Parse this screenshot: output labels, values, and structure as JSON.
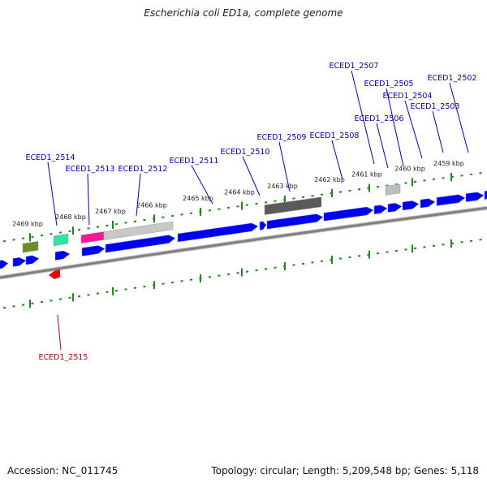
{
  "title": "Escherichia coli ED1a, complete genome",
  "footer": {
    "accession": "Accession: NC_011745",
    "topology": "Topology: circular; Length: 5,209,548 bp; Genes: 5,118"
  },
  "colors": {
    "gene_forward": "#0000ee",
    "gene_reverse": "#ee0000",
    "label_forward": "#0000bb",
    "label_reverse": "#bb0000",
    "ticks": "#1a8a1a",
    "backbone": "#808080"
  },
  "scale_ticks": [
    "2469 kbp",
    "2468 kbp",
    "2467 kbp",
    "2466 kbp",
    "2465 kbp",
    "2464 kbp",
    "2463 kbp",
    "2462 kbp",
    "2461 kbp",
    "2460 kbp",
    "2459 kbp"
  ],
  "gene_labels": [
    {
      "id": "ECED1_2514",
      "strand": "forward"
    },
    {
      "id": "ECED1_2513",
      "strand": "forward"
    },
    {
      "id": "ECED1_2512",
      "strand": "forward"
    },
    {
      "id": "ECED1_2511",
      "strand": "forward"
    },
    {
      "id": "ECED1_2510",
      "strand": "forward"
    },
    {
      "id": "ECED1_2509",
      "strand": "forward"
    },
    {
      "id": "ECED1_2508",
      "strand": "forward"
    },
    {
      "id": "ECED1_2507",
      "strand": "forward"
    },
    {
      "id": "ECED1_2506",
      "strand": "forward"
    },
    {
      "id": "ECED1_2505",
      "strand": "forward"
    },
    {
      "id": "ECED1_2504",
      "strand": "forward"
    },
    {
      "id": "ECED1_2503",
      "strand": "forward"
    },
    {
      "id": "ECED1_2502",
      "strand": "forward"
    },
    {
      "id": "ECED1_2515",
      "strand": "reverse"
    }
  ]
}
